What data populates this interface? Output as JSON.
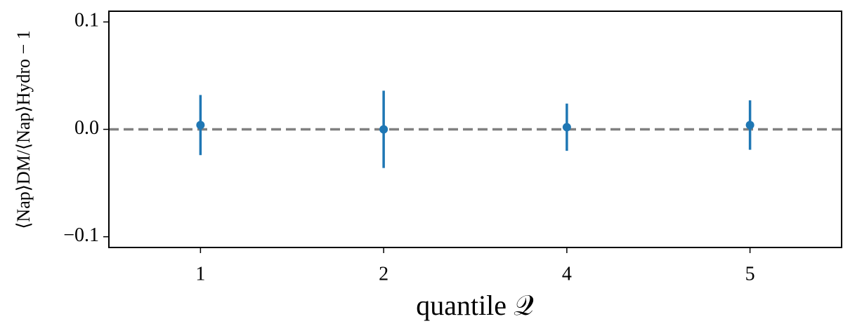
{
  "chart_data": {
    "type": "errorbar",
    "x_label": "quantile 𝒬",
    "y_label": "⟨Nap⟩DM/⟨Nap⟩Hydro − 1",
    "categories": [
      "1",
      "2",
      "4",
      "5"
    ],
    "series": [
      {
        "color": "#1f77b4",
        "values": [
          0.004,
          0.0,
          0.002,
          0.004
        ],
        "errors": [
          0.028,
          0.036,
          0.022,
          0.023
        ]
      }
    ],
    "ylim": [
      -0.11,
      0.11
    ],
    "yticks": [
      {
        "value": -0.1,
        "label": "−0.1"
      },
      {
        "value": 0,
        "label": "0.0"
      },
      0.1
    ],
    "hline": {
      "y": 0,
      "color": "#808080"
    }
  }
}
